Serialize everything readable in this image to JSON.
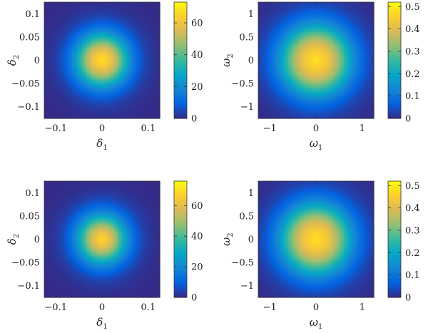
{
  "chart_data": [
    {
      "type": "heatmap",
      "title": "",
      "xlabel": "δ",
      "xlabel_sub": "1",
      "ylabel": "δ",
      "ylabel_sub": "2",
      "xlim": [
        -0.125,
        0.125
      ],
      "ylim": [
        -0.125,
        0.125
      ],
      "xticks": [
        -0.1,
        0,
        0.1
      ],
      "xtick_labels": [
        "−0.1",
        "0",
        "0.1"
      ],
      "yticks": [
        -0.1,
        -0.05,
        0,
        0.05,
        0.1
      ],
      "ytick_labels": [
        "−0.1",
        "−0.05",
        "0",
        "0.05",
        "0.1"
      ],
      "peak": 73,
      "center": [
        0,
        0
      ],
      "flat_radius": 0.045,
      "falloff": 0.018,
      "colorbar": {
        "min": 0,
        "max": 73,
        "ticks": [
          0,
          20,
          40,
          60
        ],
        "tick_labels": [
          "0",
          "20",
          "40",
          "60"
        ]
      },
      "grid": false
    },
    {
      "type": "heatmap",
      "title": "",
      "xlabel": "ω",
      "xlabel_sub": "1",
      "ylabel": "ω",
      "ylabel_sub": "2",
      "xlim": [
        -1.25,
        1.25
      ],
      "ylim": [
        -1.25,
        1.25
      ],
      "xticks": [
        -1,
        0,
        1
      ],
      "xtick_labels": [
        "−1",
        "0",
        "1"
      ],
      "yticks": [
        -1,
        -0.5,
        0,
        0.5,
        1
      ],
      "ytick_labels": [
        "−1",
        "−0.5",
        "0",
        "0.5",
        "1"
      ],
      "peak": 0.51,
      "center": [
        0,
        0
      ],
      "flat_radius": 0.62,
      "falloff": 0.22,
      "colorbar": {
        "min": 0,
        "max": 0.52,
        "ticks": [
          0,
          0.1,
          0.2,
          0.3,
          0.4,
          0.5
        ],
        "tick_labels": [
          "0",
          "0.1",
          "0.2",
          "0.3",
          "0.4",
          "0.5"
        ]
      },
      "grid": false
    },
    {
      "type": "heatmap",
      "title": "",
      "xlabel": "δ",
      "xlabel_sub": "1",
      "ylabel": "δ",
      "ylabel_sub": "2",
      "xlim": [
        -0.125,
        0.125
      ],
      "ylim": [
        -0.125,
        0.125
      ],
      "xticks": [
        -0.1,
        0,
        0.1
      ],
      "xtick_labels": [
        "−0.1",
        "0",
        "0.1"
      ],
      "yticks": [
        -0.1,
        -0.05,
        0,
        0.05,
        0.1
      ],
      "ytick_labels": [
        "−0.1",
        "−0.05",
        "0",
        "0.05",
        "0.1"
      ],
      "peak": 76,
      "center": [
        0,
        0
      ],
      "flat_radius": 0.04,
      "falloff": 0.018,
      "colorbar": {
        "min": 0,
        "max": 76,
        "ticks": [
          0,
          20,
          40,
          60
        ],
        "tick_labels": [
          "0",
          "20",
          "40",
          "60"
        ]
      },
      "grid": false
    },
    {
      "type": "heatmap",
      "title": "",
      "xlabel": "ω",
      "xlabel_sub": "1",
      "ylabel": "ω",
      "ylabel_sub": "2",
      "xlim": [
        -1.25,
        1.25
      ],
      "ylim": [
        -1.25,
        1.25
      ],
      "xticks": [
        -1,
        0,
        1
      ],
      "xtick_labels": [
        "−1",
        "0",
        "1"
      ],
      "yticks": [
        -1,
        -0.5,
        0,
        0.5,
        1
      ],
      "ytick_labels": [
        "−1",
        "−0.5",
        "0",
        "0.5",
        "1"
      ],
      "peak": 0.51,
      "center": [
        0,
        0
      ],
      "flat_radius": 0.62,
      "falloff": 0.22,
      "colorbar": {
        "min": 0,
        "max": 0.52,
        "ticks": [
          0,
          0.1,
          0.2,
          0.3,
          0.4,
          0.5
        ],
        "tick_labels": [
          "0",
          "0.1",
          "0.2",
          "0.3",
          "0.4",
          "0.5"
        ]
      },
      "grid": false
    }
  ],
  "colormap": {
    "name": "parula",
    "stops": [
      "#352a87",
      "#0363e1",
      "#1485d4",
      "#06a7c6",
      "#38b99e",
      "#92bf73",
      "#d9ba56",
      "#fcce2e",
      "#f9fb0e"
    ]
  }
}
